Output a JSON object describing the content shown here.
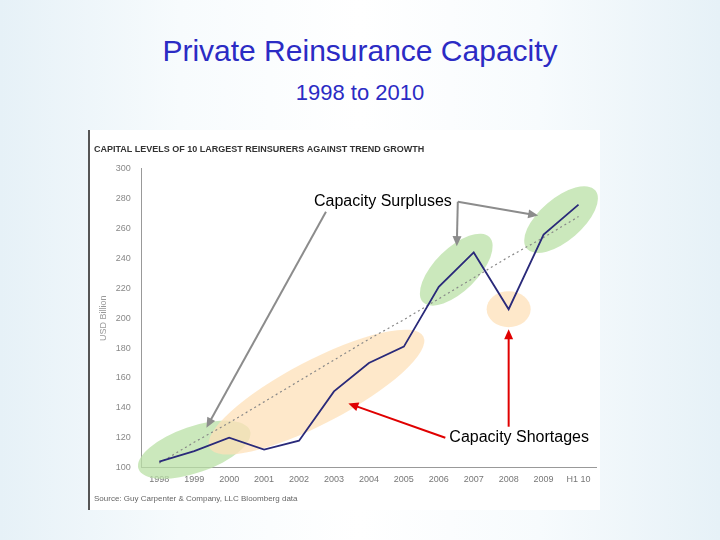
{
  "header": {
    "title": "Private Reinsurance Capacity",
    "subtitle": "1998 to 2010"
  },
  "chart_data": {
    "type": "line",
    "title": "CAPITAL LEVELS OF 10 LARGEST REINSURERS AGAINST TREND GROWTH",
    "source": "Source: Guy Carpenter & Company, LLC Bloomberg data",
    "y_label": "USD Billion",
    "categories": [
      "1998",
      "1999",
      "2000",
      "2001",
      "2002",
      "2003",
      "2004",
      "2005",
      "2006",
      "2007",
      "2008",
      "2009",
      "H1 10"
    ],
    "series": [
      {
        "color": "#2a2a7a",
        "line_style": "solid",
        "values": [
          104,
          111,
          120,
          112,
          118,
          151,
          170,
          181,
          221,
          244,
          206,
          256,
          276
        ]
      },
      {
        "color": "#888888",
        "line_style": "dotted",
        "values": [
          103,
          117,
          130,
          144,
          158,
          172,
          186,
          199,
          213,
          227,
          241,
          254,
          268
        ]
      }
    ],
    "ylim": [
      100,
      300
    ],
    "yticks": [
      100,
      120,
      140,
      160,
      180,
      200,
      220,
      240,
      260,
      280,
      300
    ],
    "grid": false,
    "annotations": [
      {
        "text": "Capacity Surpluses",
        "color": "#b9e0a5",
        "periods": [
          [
            "1998",
            "2000"
          ],
          [
            "2006",
            "2007"
          ],
          [
            "2009",
            "H1 10"
          ]
        ]
      },
      {
        "text": "Capacity Shortages",
        "color": "#fde0b8",
        "periods": [
          [
            "2000",
            "2005"
          ],
          [
            "2008",
            "2008"
          ]
        ]
      }
    ]
  }
}
